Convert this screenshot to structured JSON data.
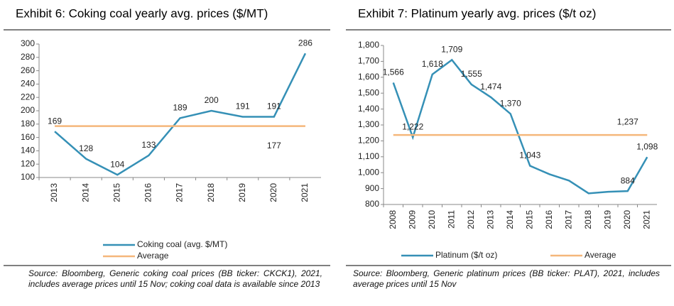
{
  "chart_data": [
    {
      "type": "line",
      "title": "Exhibit 6: Coking coal yearly avg. prices ($/MT)",
      "categories": [
        "2013",
        "2014",
        "2015",
        "2016",
        "2017",
        "2018",
        "2019",
        "2020",
        "2021"
      ],
      "series": [
        {
          "name": "Coking coal (avg. $/MT)",
          "color": "#3590b6",
          "values": [
            169,
            128,
            104,
            133,
            189,
            200,
            191,
            191,
            286
          ]
        },
        {
          "name": "Average",
          "color": "#f5b77b",
          "values": [
            177,
            177,
            177,
            177,
            177,
            177,
            177,
            177,
            177
          ],
          "value_labels": [
            null,
            null,
            null,
            null,
            null,
            null,
            null,
            "177",
            null
          ]
        }
      ],
      "ylim": [
        100,
        300
      ],
      "yticks": [
        100,
        120,
        140,
        160,
        180,
        200,
        220,
        240,
        260,
        280,
        300
      ],
      "legend": "bottom",
      "source": "Source: Bloomberg, Generic coking coal prices (BB ticker: CKCK1), 2021, includes average prices until 15 Nov; coking coal data is available since 2013"
    },
    {
      "type": "line",
      "title": "Exhibit 7: Platinum yearly avg. prices ($/t oz)",
      "categories": [
        "2008",
        "2009",
        "2010",
        "2011",
        "2012",
        "2013",
        "2014",
        "2015",
        "2016",
        "2017",
        "2018",
        "2019",
        "2020",
        "2021"
      ],
      "series": [
        {
          "name": "Platinum ($/t oz)",
          "color": "#3590b6",
          "values": [
            1566,
            1222,
            1618,
            1709,
            1555,
            1474,
            1370,
            1043,
            990,
            950,
            870,
            880,
            884,
            1098
          ],
          "value_labels": [
            "1,566",
            "1,222",
            "1,618",
            "1,709",
            "1,555",
            "1,474",
            "1,370",
            "1,043",
            null,
            null,
            null,
            null,
            "884",
            "1,098"
          ]
        },
        {
          "name": "Average",
          "color": "#f5b77b",
          "values": [
            1237,
            1237,
            1237,
            1237,
            1237,
            1237,
            1237,
            1237,
            1237,
            1237,
            1237,
            1237,
            1237,
            1237
          ],
          "value_labels": [
            null,
            null,
            null,
            null,
            null,
            null,
            null,
            null,
            null,
            null,
            null,
            null,
            "1,237",
            null
          ]
        }
      ],
      "ylim": [
        800,
        1800
      ],
      "yticks": [
        800,
        900,
        {
          "value": 1000,
          "label": "1,000"
        },
        {
          "value": 1100,
          "label": "1,100"
        },
        {
          "value": 1200,
          "label": "1,200"
        },
        {
          "value": 1300,
          "label": "1,300"
        },
        {
          "value": 1400,
          "label": "1,400"
        },
        {
          "value": 1500,
          "label": "1,500"
        },
        {
          "value": 1600,
          "label": "1,600"
        },
        {
          "value": 1700,
          "label": "1,700"
        },
        {
          "value": 1800,
          "label": "1,800"
        }
      ],
      "legend": "bottom",
      "source": "Source: Bloomberg, Generic platinum prices (BB ticker: PLAT), 2021, includes average prices until 15 Nov"
    }
  ]
}
